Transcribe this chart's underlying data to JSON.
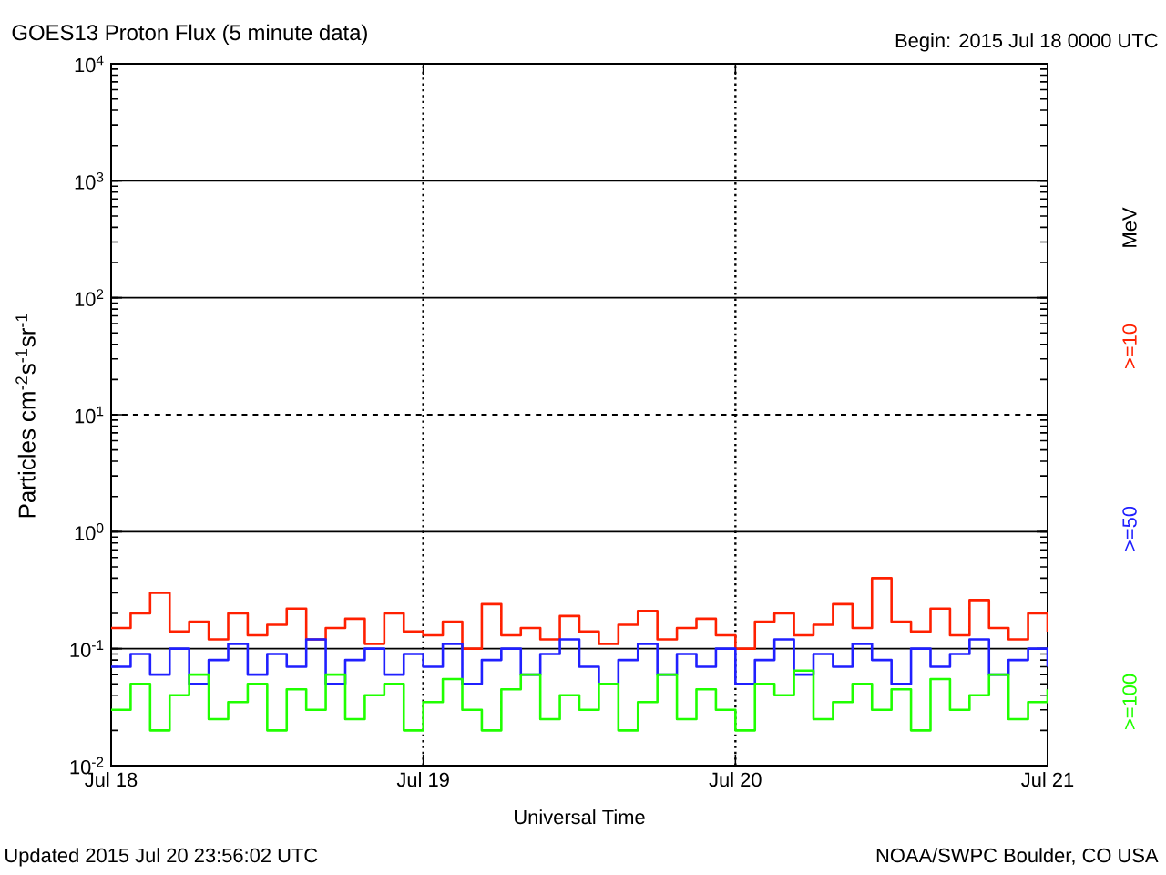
{
  "chart_data": {
    "type": "step",
    "title": "GOES13 Proton Flux (5 minute data)",
    "subtitle": "Begin: 2015 Jul 18 0000 UTC",
    "xlabel": "Universal Time",
    "ylabel": "Particles cm$^{-2}$s$^{-1}$sr$^{-1}$",
    "legend_title": "MeV",
    "annotations": [
      "Updated 2015 Jul 20 23:56:02 UTC",
      "NOAA/SWPC Boulder, CO USA"
    ],
    "log": "y",
    "legend": "right",
    "xlim": [
      "2015-07-18",
      "2015-07-21"
    ],
    "xticks": [
      {
        "value": "2015-07-18",
        "label": "Jul 18"
      },
      {
        "value": "2015-07-19",
        "label": "Jul 19"
      },
      {
        "value": "2015-07-20",
        "label": "Jul 20"
      },
      {
        "value": "2015-07-21",
        "label": "Jul 21"
      }
    ],
    "ylim": [
      0.01,
      10000
    ],
    "yticks": [
      {
        "value": 0.01,
        "label": "10$^{-2}$"
      },
      {
        "value": 0.1,
        "label": "10$^{-1}$"
      },
      {
        "value": 1,
        "label": "10$^{0}$"
      },
      {
        "value": 10,
        "label": "10$^{1}$"
      },
      {
        "value": 100,
        "label": "10$^{2}$"
      },
      {
        "value": 1000,
        "label": "10$^{3}$"
      },
      {
        "value": 10000,
        "label": "10$^{4}$"
      }
    ],
    "ref_lines": [
      {
        "axis": "y",
        "value": 1,
        "line_style": "solid",
        "color": "#000000"
      },
      {
        "axis": "y",
        "value": 10,
        "line_style": "dashed",
        "color": "#000000"
      },
      {
        "axis": "y",
        "value": 100,
        "line_style": "solid",
        "color": "#000000"
      },
      {
        "axis": "y",
        "value": 1000,
        "line_style": "solid",
        "color": "#000000"
      },
      {
        "axis": "y",
        "value": 0.1,
        "line_style": "solid",
        "color": "#000000"
      },
      {
        "axis": "x",
        "value": "2015-07-19",
        "line_style": "dotted",
        "color": "#000000"
      },
      {
        "axis": "x",
        "value": "2015-07-20",
        "line_style": "dotted",
        "color": "#000000"
      }
    ],
    "x": [
      "2015-07-18T00:00",
      "2015-07-18T01:30",
      "2015-07-18T03:00",
      "2015-07-18T04:30",
      "2015-07-18T06:00",
      "2015-07-18T07:30",
      "2015-07-18T09:00",
      "2015-07-18T10:30",
      "2015-07-18T12:00",
      "2015-07-18T13:30",
      "2015-07-18T15:00",
      "2015-07-18T16:30",
      "2015-07-18T18:00",
      "2015-07-18T19:30",
      "2015-07-18T21:00",
      "2015-07-18T22:30",
      "2015-07-19T00:00",
      "2015-07-19T01:30",
      "2015-07-19T03:00",
      "2015-07-19T04:30",
      "2015-07-19T06:00",
      "2015-07-19T07:30",
      "2015-07-19T09:00",
      "2015-07-19T10:30",
      "2015-07-19T12:00",
      "2015-07-19T13:30",
      "2015-07-19T15:00",
      "2015-07-19T16:30",
      "2015-07-19T18:00",
      "2015-07-19T19:30",
      "2015-07-19T21:00",
      "2015-07-19T22:30",
      "2015-07-20T00:00",
      "2015-07-20T01:30",
      "2015-07-20T03:00",
      "2015-07-20T04:30",
      "2015-07-20T06:00",
      "2015-07-20T07:30",
      "2015-07-20T09:00",
      "2015-07-20T10:30",
      "2015-07-20T12:00",
      "2015-07-20T13:30",
      "2015-07-20T15:00",
      "2015-07-20T16:30",
      "2015-07-20T18:00",
      "2015-07-20T19:30",
      "2015-07-20T21:00",
      "2015-07-20T22:30",
      "2015-07-21T00:00"
    ],
    "series": [
      {
        "name": ">=10",
        "color": "#ff2000",
        "values": [
          0.15,
          0.2,
          0.3,
          0.14,
          0.17,
          0.12,
          0.2,
          0.13,
          0.16,
          0.22,
          0.12,
          0.15,
          0.18,
          0.11,
          0.2,
          0.14,
          0.13,
          0.17,
          0.1,
          0.24,
          0.13,
          0.15,
          0.12,
          0.19,
          0.14,
          0.11,
          0.16,
          0.21,
          0.12,
          0.15,
          0.18,
          0.13,
          0.1,
          0.17,
          0.2,
          0.13,
          0.16,
          0.24,
          0.15,
          0.4,
          0.17,
          0.14,
          0.22,
          0.13,
          0.26,
          0.15,
          0.12,
          0.2,
          0.14
        ]
      },
      {
        "name": ">=50",
        "color": "#2020ff",
        "values": [
          0.07,
          0.09,
          0.06,
          0.1,
          0.05,
          0.08,
          0.11,
          0.06,
          0.09,
          0.07,
          0.12,
          0.05,
          0.08,
          0.1,
          0.06,
          0.09,
          0.07,
          0.11,
          0.05,
          0.08,
          0.1,
          0.06,
          0.09,
          0.12,
          0.07,
          0.05,
          0.08,
          0.11,
          0.06,
          0.09,
          0.07,
          0.1,
          0.05,
          0.08,
          0.12,
          0.06,
          0.09,
          0.07,
          0.11,
          0.08,
          0.05,
          0.1,
          0.07,
          0.09,
          0.12,
          0.06,
          0.08,
          0.1,
          0.07
        ]
      },
      {
        "name": ">=100",
        "color": "#20ff00",
        "values": [
          0.03,
          0.05,
          0.02,
          0.04,
          0.06,
          0.025,
          0.035,
          0.05,
          0.02,
          0.045,
          0.03,
          0.06,
          0.025,
          0.04,
          0.05,
          0.02,
          0.035,
          0.055,
          0.03,
          0.02,
          0.045,
          0.06,
          0.025,
          0.04,
          0.03,
          0.05,
          0.02,
          0.035,
          0.06,
          0.025,
          0.045,
          0.03,
          0.02,
          0.05,
          0.04,
          0.065,
          0.025,
          0.035,
          0.05,
          0.03,
          0.045,
          0.02,
          0.055,
          0.03,
          0.04,
          0.06,
          0.025,
          0.035,
          0.045
        ]
      }
    ]
  }
}
